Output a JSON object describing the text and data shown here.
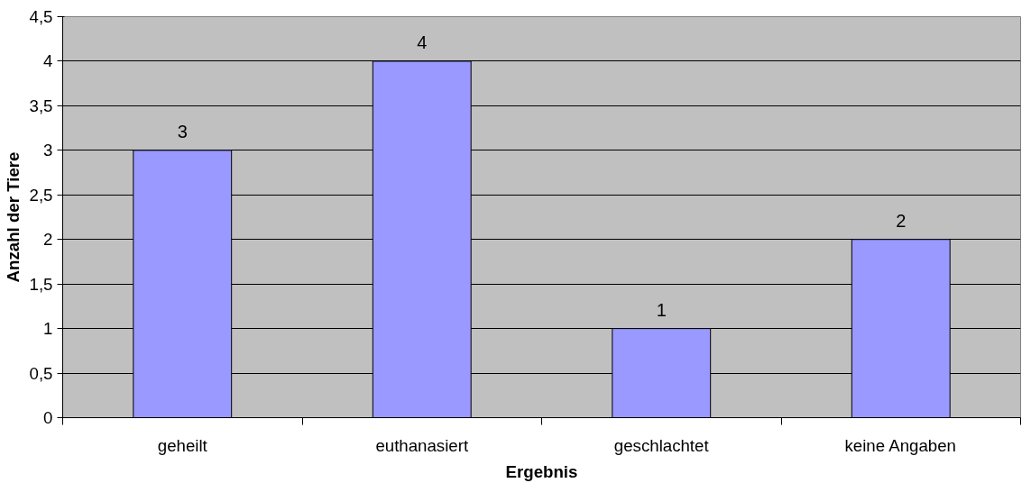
{
  "chart_data": {
    "type": "bar",
    "xlabel": "Ergebnis",
    "ylabel": "Anzahl der Tiere",
    "categories": [
      "geheilt",
      "euthanasiert",
      "geschlachtet",
      "keine Angaben"
    ],
    "values": [
      3,
      4,
      1,
      2
    ],
    "color": "#9999ff",
    "ylim": [
      0,
      4.5
    ],
    "yticks": [
      0,
      {
        "value": 0.5,
        "label": "0,5"
      },
      1,
      {
        "value": 1.5,
        "label": "1,5"
      },
      2,
      {
        "value": 2.5,
        "label": "2,5"
      },
      3,
      {
        "value": 3.5,
        "label": "3,5"
      },
      4,
      {
        "value": 4.5,
        "label": "4,5"
      }
    ],
    "grid": "y",
    "data_labels": true
  }
}
